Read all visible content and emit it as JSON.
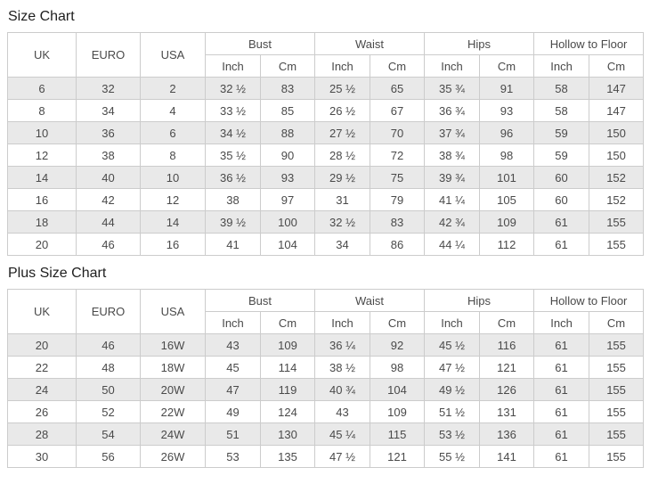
{
  "colors": {
    "stripe": "#e9e9e9",
    "border": "#cccccc",
    "text": "#4a4a4a",
    "title": "#1e1e1e"
  },
  "columns": {
    "uk": "UK",
    "euro": "EURO",
    "usa": "USA",
    "groups": [
      "Bust",
      "Waist",
      "Hips",
      "Hollow to Floor"
    ],
    "sub_inch": "Inch",
    "sub_cm": "Cm"
  },
  "size_chart": {
    "title": "Size Chart",
    "rows": [
      [
        "6",
        "32",
        "2",
        "32 ½",
        "83",
        "25 ½",
        "65",
        "35 ¾",
        "91",
        "58",
        "147"
      ],
      [
        "8",
        "34",
        "4",
        "33 ½",
        "85",
        "26 ½",
        "67",
        "36 ¾",
        "93",
        "58",
        "147"
      ],
      [
        "10",
        "36",
        "6",
        "34 ½",
        "88",
        "27 ½",
        "70",
        "37 ¾",
        "96",
        "59",
        "150"
      ],
      [
        "12",
        "38",
        "8",
        "35 ½",
        "90",
        "28 ½",
        "72",
        "38 ¾",
        "98",
        "59",
        "150"
      ],
      [
        "14",
        "40",
        "10",
        "36 ½",
        "93",
        "29 ½",
        "75",
        "39 ¾",
        "101",
        "60",
        "152"
      ],
      [
        "16",
        "42",
        "12",
        "38",
        "97",
        "31",
        "79",
        "41 ¼",
        "105",
        "60",
        "152"
      ],
      [
        "18",
        "44",
        "14",
        "39 ½",
        "100",
        "32 ½",
        "83",
        "42 ¾",
        "109",
        "61",
        "155"
      ],
      [
        "20",
        "46",
        "16",
        "41",
        "104",
        "34",
        "86",
        "44 ¼",
        "112",
        "61",
        "155"
      ]
    ]
  },
  "plus_size_chart": {
    "title": "Plus Size Chart",
    "rows": [
      [
        "20",
        "46",
        "16W",
        "43",
        "109",
        "36 ¼",
        "92",
        "45 ½",
        "116",
        "61",
        "155"
      ],
      [
        "22",
        "48",
        "18W",
        "45",
        "114",
        "38 ½",
        "98",
        "47 ½",
        "121",
        "61",
        "155"
      ],
      [
        "24",
        "50",
        "20W",
        "47",
        "119",
        "40 ¾",
        "104",
        "49 ½",
        "126",
        "61",
        "155"
      ],
      [
        "26",
        "52",
        "22W",
        "49",
        "124",
        "43",
        "109",
        "51 ½",
        "131",
        "61",
        "155"
      ],
      [
        "28",
        "54",
        "24W",
        "51",
        "130",
        "45 ¼",
        "115",
        "53 ½",
        "136",
        "61",
        "155"
      ],
      [
        "30",
        "56",
        "26W",
        "53",
        "135",
        "47 ½",
        "121",
        "55 ½",
        "141",
        "61",
        "155"
      ]
    ]
  }
}
